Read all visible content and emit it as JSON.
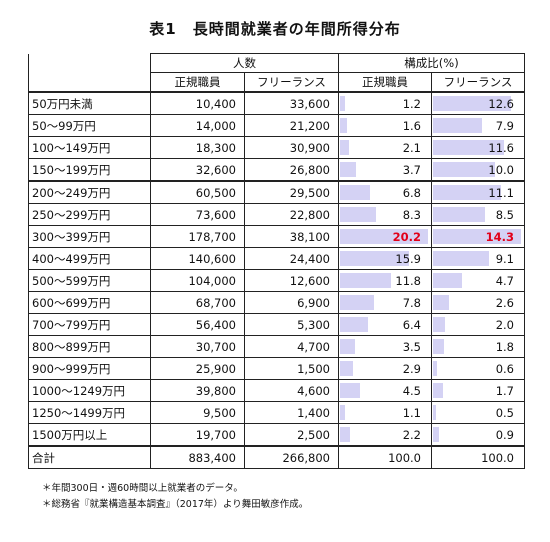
{
  "title": "表1　長時間就業者の年間所得分布",
  "headers": {
    "count_group": "人数",
    "ratio_group": "構成比(%)",
    "regular": "正規職員",
    "freelance": "フリーランス"
  },
  "rows": [
    {
      "cat": "50万円未満",
      "reg": "10,400",
      "free": "33,600",
      "reg_pct": "1.2",
      "free_pct": "12.6",
      "reg_v": 1.2,
      "free_v": 12.6
    },
    {
      "cat": "50～99万円",
      "reg": "14,000",
      "free": "21,200",
      "reg_pct": "1.6",
      "free_pct": "7.9",
      "reg_v": 1.6,
      "free_v": 7.9
    },
    {
      "cat": "100～149万円",
      "reg": "18,300",
      "free": "30,900",
      "reg_pct": "2.1",
      "free_pct": "11.6",
      "reg_v": 2.1,
      "free_v": 11.6
    },
    {
      "cat": "150～199万円",
      "reg": "32,600",
      "free": "26,800",
      "reg_pct": "3.7",
      "free_pct": "10.0",
      "reg_v": 3.7,
      "free_v": 10.0
    },
    {
      "cat": "200～249万円",
      "reg": "60,500",
      "free": "29,500",
      "reg_pct": "6.8",
      "free_pct": "11.1",
      "reg_v": 6.8,
      "free_v": 11.1
    },
    {
      "cat": "250～299万円",
      "reg": "73,600",
      "free": "22,800",
      "reg_pct": "8.3",
      "free_pct": "8.5",
      "reg_v": 8.3,
      "free_v": 8.5
    },
    {
      "cat": "300～399万円",
      "reg": "178,700",
      "free": "38,100",
      "reg_pct": "20.2",
      "free_pct": "14.3",
      "reg_v": 20.2,
      "free_v": 14.3
    },
    {
      "cat": "400～499万円",
      "reg": "140,600",
      "free": "24,400",
      "reg_pct": "15.9",
      "free_pct": "9.1",
      "reg_v": 15.9,
      "free_v": 9.1
    },
    {
      "cat": "500～599万円",
      "reg": "104,000",
      "free": "12,600",
      "reg_pct": "11.8",
      "free_pct": "4.7",
      "reg_v": 11.8,
      "free_v": 4.7
    },
    {
      "cat": "600～699万円",
      "reg": "68,700",
      "free": "6,900",
      "reg_pct": "7.8",
      "free_pct": "2.6",
      "reg_v": 7.8,
      "free_v": 2.6
    },
    {
      "cat": "700～799万円",
      "reg": "56,400",
      "free": "5,300",
      "reg_pct": "6.4",
      "free_pct": "2.0",
      "reg_v": 6.4,
      "free_v": 2.0
    },
    {
      "cat": "800～899万円",
      "reg": "30,700",
      "free": "4,700",
      "reg_pct": "3.5",
      "free_pct": "1.8",
      "reg_v": 3.5,
      "free_v": 1.8
    },
    {
      "cat": "900～999万円",
      "reg": "25,900",
      "free": "1,500",
      "reg_pct": "2.9",
      "free_pct": "0.6",
      "reg_v": 2.9,
      "free_v": 0.6
    },
    {
      "cat": "1000～1249万円",
      "reg": "39,800",
      "free": "4,600",
      "reg_pct": "4.5",
      "free_pct": "1.7",
      "reg_v": 4.5,
      "free_v": 1.7
    },
    {
      "cat": "1250～1499万円",
      "reg": "9,500",
      "free": "1,400",
      "reg_pct": "1.1",
      "free_pct": "0.5",
      "reg_v": 1.1,
      "free_v": 0.5
    },
    {
      "cat": "1500万円以上",
      "reg": "19,700",
      "free": "2,500",
      "reg_pct": "2.2",
      "free_pct": "0.9",
      "reg_v": 2.2,
      "free_v": 0.9
    }
  ],
  "total": {
    "cat": "合計",
    "reg": "883,400",
    "free": "266,800",
    "reg_pct": "100.0",
    "free_pct": "100.0"
  },
  "highlight_row": 6,
  "colors": {
    "bar": "#d4d2f4",
    "highlight": "#e2001a"
  },
  "notes": [
    "＊年間300日・週60時間以上就業者のデータ。",
    "＊総務省『就業構造基本調査』（2017年）より舞田敏彦作成。"
  ]
}
